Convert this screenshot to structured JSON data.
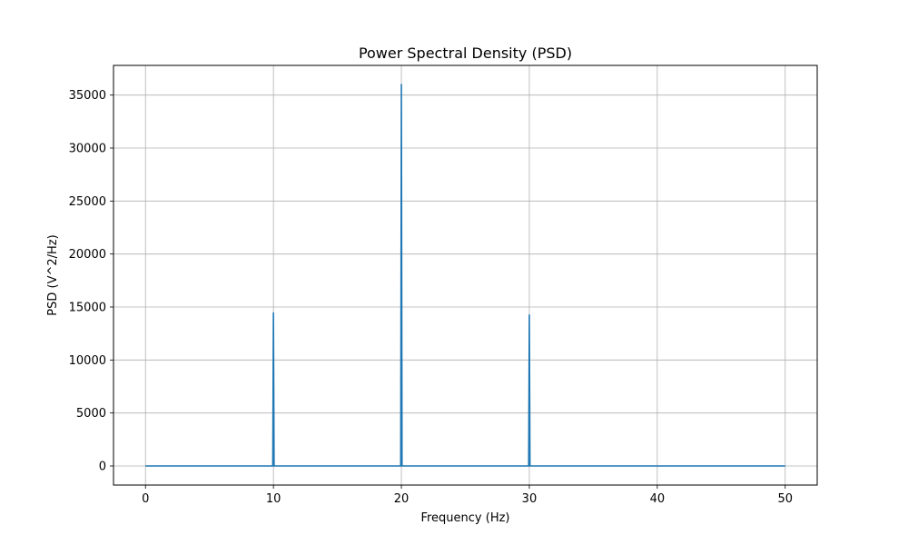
{
  "chart_data": {
    "type": "line",
    "title": "Power Spectral Density (PSD)",
    "xlabel": "Frequency (Hz)",
    "ylabel": "PSD (V^2/Hz)",
    "xlim": [
      -2.5,
      52.5
    ],
    "ylim": [
      -1800,
      37800
    ],
    "xticks": [
      0,
      10,
      20,
      30,
      40,
      50
    ],
    "yticks": [
      0,
      5000,
      10000,
      15000,
      20000,
      25000,
      30000,
      35000
    ],
    "grid": true,
    "color": "#1f77b4",
    "series": [
      {
        "x": [
          0,
          9.95,
          10,
          10.05,
          19.95,
          20,
          20.05,
          29.95,
          30,
          30.05,
          50
        ],
        "y": [
          0,
          0,
          14450,
          0,
          0,
          36000,
          0,
          0,
          14250,
          0,
          0
        ]
      }
    ]
  }
}
